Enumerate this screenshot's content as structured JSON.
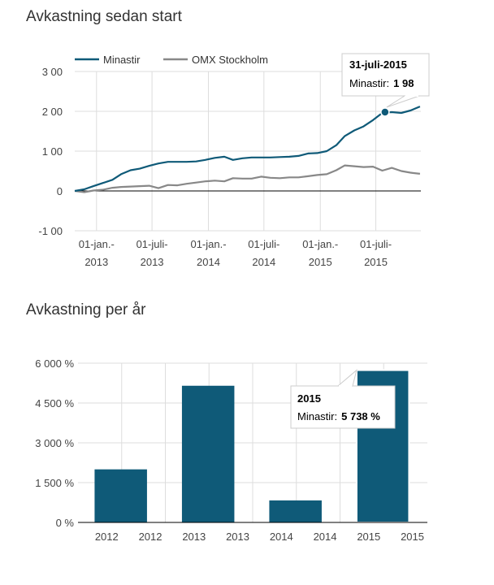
{
  "line_section": {
    "title": "Avkastning sedan start"
  },
  "bar_section": {
    "title": "Avkastning per år"
  },
  "colors": {
    "primary": "#0f5a78",
    "secondary": "#888888",
    "grid": "#dddddd",
    "axis": "#000000"
  },
  "chart_data": [
    {
      "type": "line",
      "title": "Avkastning sedan start",
      "legend": {
        "position": "top",
        "entries": [
          "Minastir",
          "OMX Stockholm"
        ]
      },
      "y_ticks": [
        "3 00",
        "2 00",
        "1 00",
        "0",
        "-1 00"
      ],
      "y_tick_values": [
        3,
        2,
        1,
        0,
        -1
      ],
      "ylim": [
        -1,
        3
      ],
      "xlim": [
        "2012-10-22",
        "2015-11-25"
      ],
      "x_ticks": [
        {
          "date": "2013-01-01",
          "line1": "01-jan.-",
          "line2": "2013"
        },
        {
          "date": "2013-07-01",
          "line1": "01-juli-",
          "line2": "2013"
        },
        {
          "date": "2014-01-01",
          "line1": "01-jan.-",
          "line2": "2014"
        },
        {
          "date": "2014-07-01",
          "line1": "01-juli-",
          "line2": "2014"
        },
        {
          "date": "2015-01-01",
          "line1": "01-jan.-",
          "line2": "2015"
        },
        {
          "date": "2015-07-01",
          "line1": "01-juli-",
          "line2": "2015"
        }
      ],
      "series": [
        {
          "name": "Minastir",
          "points": [
            [
              "2012-10-22",
              0.0
            ],
            [
              "2012-11-22",
              0.04
            ],
            [
              "2012-12-22",
              0.12
            ],
            [
              "2013-01-22",
              0.2
            ],
            [
              "2013-02-22",
              0.28
            ],
            [
              "2013-03-22",
              0.42
            ],
            [
              "2013-04-22",
              0.52
            ],
            [
              "2013-05-22",
              0.56
            ],
            [
              "2013-06-22",
              0.63
            ],
            [
              "2013-07-22",
              0.69
            ],
            [
              "2013-08-22",
              0.73
            ],
            [
              "2013-09-22",
              0.73
            ],
            [
              "2013-10-22",
              0.73
            ],
            [
              "2013-11-22",
              0.74
            ],
            [
              "2013-12-22",
              0.78
            ],
            [
              "2014-01-22",
              0.83
            ],
            [
              "2014-02-22",
              0.86
            ],
            [
              "2014-03-22",
              0.78
            ],
            [
              "2014-04-22",
              0.82
            ],
            [
              "2014-05-22",
              0.84
            ],
            [
              "2014-06-22",
              0.84
            ],
            [
              "2014-07-22",
              0.84
            ],
            [
              "2014-08-22",
              0.85
            ],
            [
              "2014-09-22",
              0.86
            ],
            [
              "2014-10-22",
              0.88
            ],
            [
              "2014-11-22",
              0.94
            ],
            [
              "2014-12-22",
              0.95
            ],
            [
              "2015-01-22",
              1.0
            ],
            [
              "2015-02-22",
              1.15
            ],
            [
              "2015-03-22",
              1.38
            ],
            [
              "2015-04-22",
              1.52
            ],
            [
              "2015-05-22",
              1.62
            ],
            [
              "2015-06-22",
              1.78
            ],
            [
              "2015-07-22",
              1.96
            ],
            [
              "2015-08-22",
              1.98
            ],
            [
              "2015-09-22",
              1.96
            ],
            [
              "2015-10-22",
              2.02
            ],
            [
              "2015-11-22",
              2.12
            ]
          ]
        },
        {
          "name": "OMX Stockholm",
          "points": [
            [
              "2012-10-22",
              0.0
            ],
            [
              "2012-11-22",
              -0.03
            ],
            [
              "2012-12-22",
              0.01
            ],
            [
              "2013-01-22",
              0.03
            ],
            [
              "2013-02-22",
              0.08
            ],
            [
              "2013-03-22",
              0.1
            ],
            [
              "2013-04-22",
              0.11
            ],
            [
              "2013-05-22",
              0.12
            ],
            [
              "2013-06-22",
              0.13
            ],
            [
              "2013-07-22",
              0.07
            ],
            [
              "2013-08-22",
              0.15
            ],
            [
              "2013-09-22",
              0.14
            ],
            [
              "2013-10-22",
              0.18
            ],
            [
              "2013-11-22",
              0.21
            ],
            [
              "2013-12-22",
              0.24
            ],
            [
              "2014-01-22",
              0.26
            ],
            [
              "2014-02-22",
              0.24
            ],
            [
              "2014-03-22",
              0.32
            ],
            [
              "2014-04-22",
              0.31
            ],
            [
              "2014-05-22",
              0.31
            ],
            [
              "2014-06-22",
              0.36
            ],
            [
              "2014-07-22",
              0.33
            ],
            [
              "2014-08-22",
              0.32
            ],
            [
              "2014-09-22",
              0.34
            ],
            [
              "2014-10-22",
              0.34
            ],
            [
              "2014-11-22",
              0.37
            ],
            [
              "2014-12-22",
              0.4
            ],
            [
              "2015-01-22",
              0.42
            ],
            [
              "2015-02-22",
              0.52
            ],
            [
              "2015-03-22",
              0.64
            ],
            [
              "2015-04-22",
              0.62
            ],
            [
              "2015-05-22",
              0.6
            ],
            [
              "2015-06-22",
              0.61
            ],
            [
              "2015-07-22",
              0.51
            ],
            [
              "2015-08-22",
              0.58
            ],
            [
              "2015-09-22",
              0.5
            ],
            [
              "2015-10-22",
              0.46
            ],
            [
              "2015-11-22",
              0.43
            ]
          ]
        }
      ],
      "highlight": {
        "date": "2015-07-31",
        "value": 1.98
      },
      "tooltip": {
        "title": "31-juli-2015",
        "series_label": "Minastir:",
        "value_label": "1 98"
      }
    },
    {
      "type": "bar",
      "title": "Avkastning per år",
      "y_ticks": [
        "6 000 %",
        "4 500 %",
        "3 000 %",
        "1 500 %",
        "0 %"
      ],
      "y_tick_values": [
        6000,
        4500,
        3000,
        1500,
        0
      ],
      "ylim": [
        0,
        6000
      ],
      "x_tick_labels": [
        "2012",
        "2012",
        "2013",
        "2013",
        "2014",
        "2014",
        "2015",
        "2015"
      ],
      "categories": [
        "2012",
        "2013",
        "2014",
        "2015"
      ],
      "values": [
        2000,
        5150,
        830,
        5738
      ],
      "series_name": "Minastir",
      "highlight_index": 3,
      "tooltip": {
        "title": "2015",
        "series_label": "Minastir:",
        "value_label": "5 738 %"
      }
    }
  ]
}
